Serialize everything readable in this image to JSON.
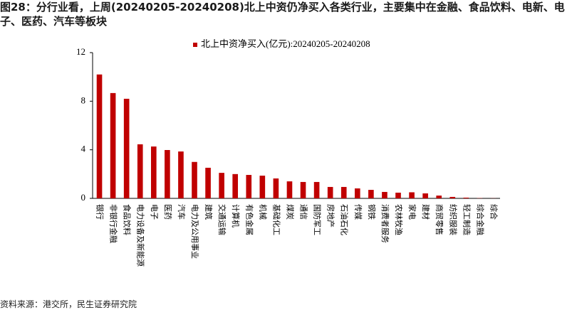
{
  "title": "图28：分行业看，上周(20240205-20240208)北上中资仍净买入各类行业，主要集中在金融、食品饮料、电新、电子、医药、汽车等板块",
  "source": "资料来源：港交所，民生证券研究院",
  "chart_data": {
    "type": "bar",
    "categories": [
      "银行",
      "非银行金融",
      "食品饮料",
      "电力设备及新能源",
      "电子",
      "医药",
      "汽车",
      "电力及公用事业",
      "建筑",
      "交通运输",
      "计算机",
      "有色金属",
      "机械",
      "基础化工",
      "煤炭",
      "通信",
      "国防军工",
      "房地产",
      "石油石化",
      "传媒",
      "钢铁",
      "消费者服务",
      "农林牧渔",
      "家电",
      "建材",
      "商贸零售",
      "纺织服装",
      "轻工制造",
      "综合金融",
      "综合"
    ],
    "series": [
      {
        "name": "北上中资净买入(亿元):20240205-20240208",
        "color": "#c00000",
        "values": [
          10.2,
          8.67,
          8.2,
          4.45,
          4.27,
          3.98,
          3.86,
          3.0,
          2.52,
          2.1,
          2.0,
          1.93,
          1.87,
          1.64,
          1.4,
          1.35,
          1.35,
          0.94,
          0.94,
          0.82,
          0.7,
          0.53,
          0.47,
          0.5,
          0.41,
          0.23,
          0.12,
          0.06,
          0.02,
          0.01
        ]
      }
    ],
    "ylim": [
      0,
      12
    ],
    "yticks": [
      0,
      4,
      8,
      12
    ],
    "grid": false
  }
}
